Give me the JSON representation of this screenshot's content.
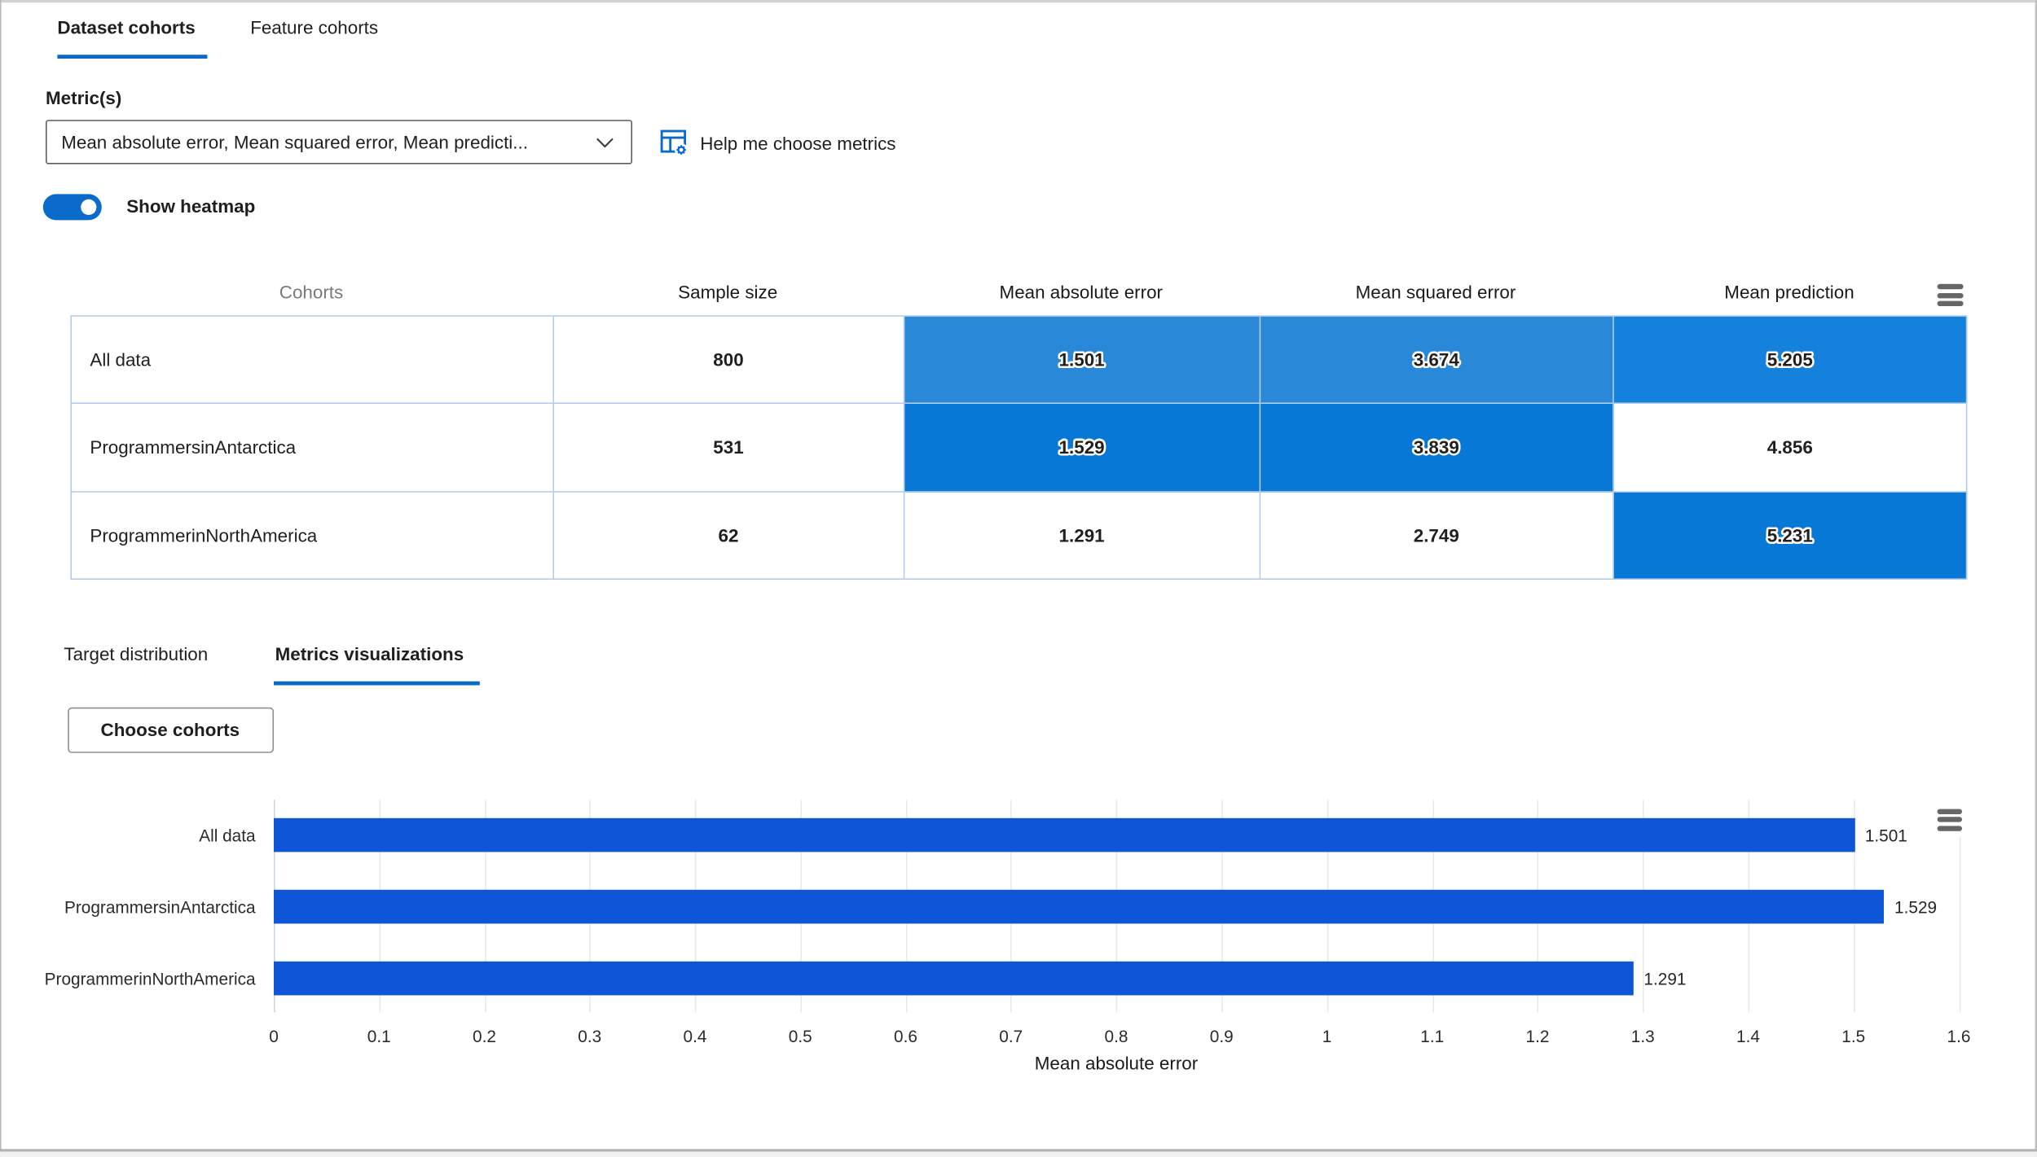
{
  "tabs": [
    {
      "label": "Dataset cohorts",
      "selected": true
    },
    {
      "label": "Feature cohorts",
      "selected": false
    }
  ],
  "metric_section": {
    "label": "Metric(s)",
    "dropdown_value": "Mean absolute error, Mean squared error, Mean predicti...",
    "help_label": "Help me choose metrics",
    "toggle_label": "Show heatmap",
    "toggle_on": true
  },
  "colors": {
    "accent": "#0b6bcb",
    "bar_blue": "#0e55d8",
    "heat_mid": "#2a88d8",
    "heat_mid_dark": "#1481dc",
    "heat_dark": "#0878d6",
    "table_border": "#b4cdec"
  },
  "table": {
    "columns": [
      "Cohorts",
      "Sample size",
      "Mean absolute error",
      "Mean squared error",
      "Mean prediction"
    ],
    "rows": [
      {
        "cohort": "All data",
        "sample_size": "800",
        "metrics": [
          {
            "value": "1.501",
            "bg": "#2a88d8"
          },
          {
            "value": "3.674",
            "bg": "#2a88d8"
          },
          {
            "value": "5.205",
            "bg": "#1481dc"
          }
        ]
      },
      {
        "cohort": "ProgrammersinAntarctica",
        "sample_size": "531",
        "metrics": [
          {
            "value": "1.529",
            "bg": "#0878d6"
          },
          {
            "value": "3.839",
            "bg": "#0878d6"
          },
          {
            "value": "4.856",
            "bg": null
          }
        ]
      },
      {
        "cohort": "ProgrammerinNorthAmerica",
        "sample_size": "62",
        "metrics": [
          {
            "value": "1.291",
            "bg": null
          },
          {
            "value": "2.749",
            "bg": null
          },
          {
            "value": "5.231",
            "bg": "#0878d6"
          }
        ]
      }
    ]
  },
  "sub_tabs": [
    {
      "label": "Target distribution",
      "selected": false
    },
    {
      "label": "Metrics visualizations",
      "selected": true
    }
  ],
  "choose_cohorts_label": "Choose cohorts",
  "chart_data": {
    "type": "bar",
    "orientation": "horizontal",
    "title": "",
    "categories": [
      "All data",
      "ProgrammersinAntarctica",
      "ProgrammerinNorthAmerica"
    ],
    "values": [
      1.501,
      1.529,
      1.291
    ],
    "value_labels": [
      "1.501",
      "1.529",
      "1.291"
    ],
    "xlabel": "Mean absolute error",
    "ylabel": "",
    "xlim": [
      0,
      1.6
    ],
    "xtick_step": 0.1,
    "grid": true,
    "bar_color": "#0e55d8"
  }
}
